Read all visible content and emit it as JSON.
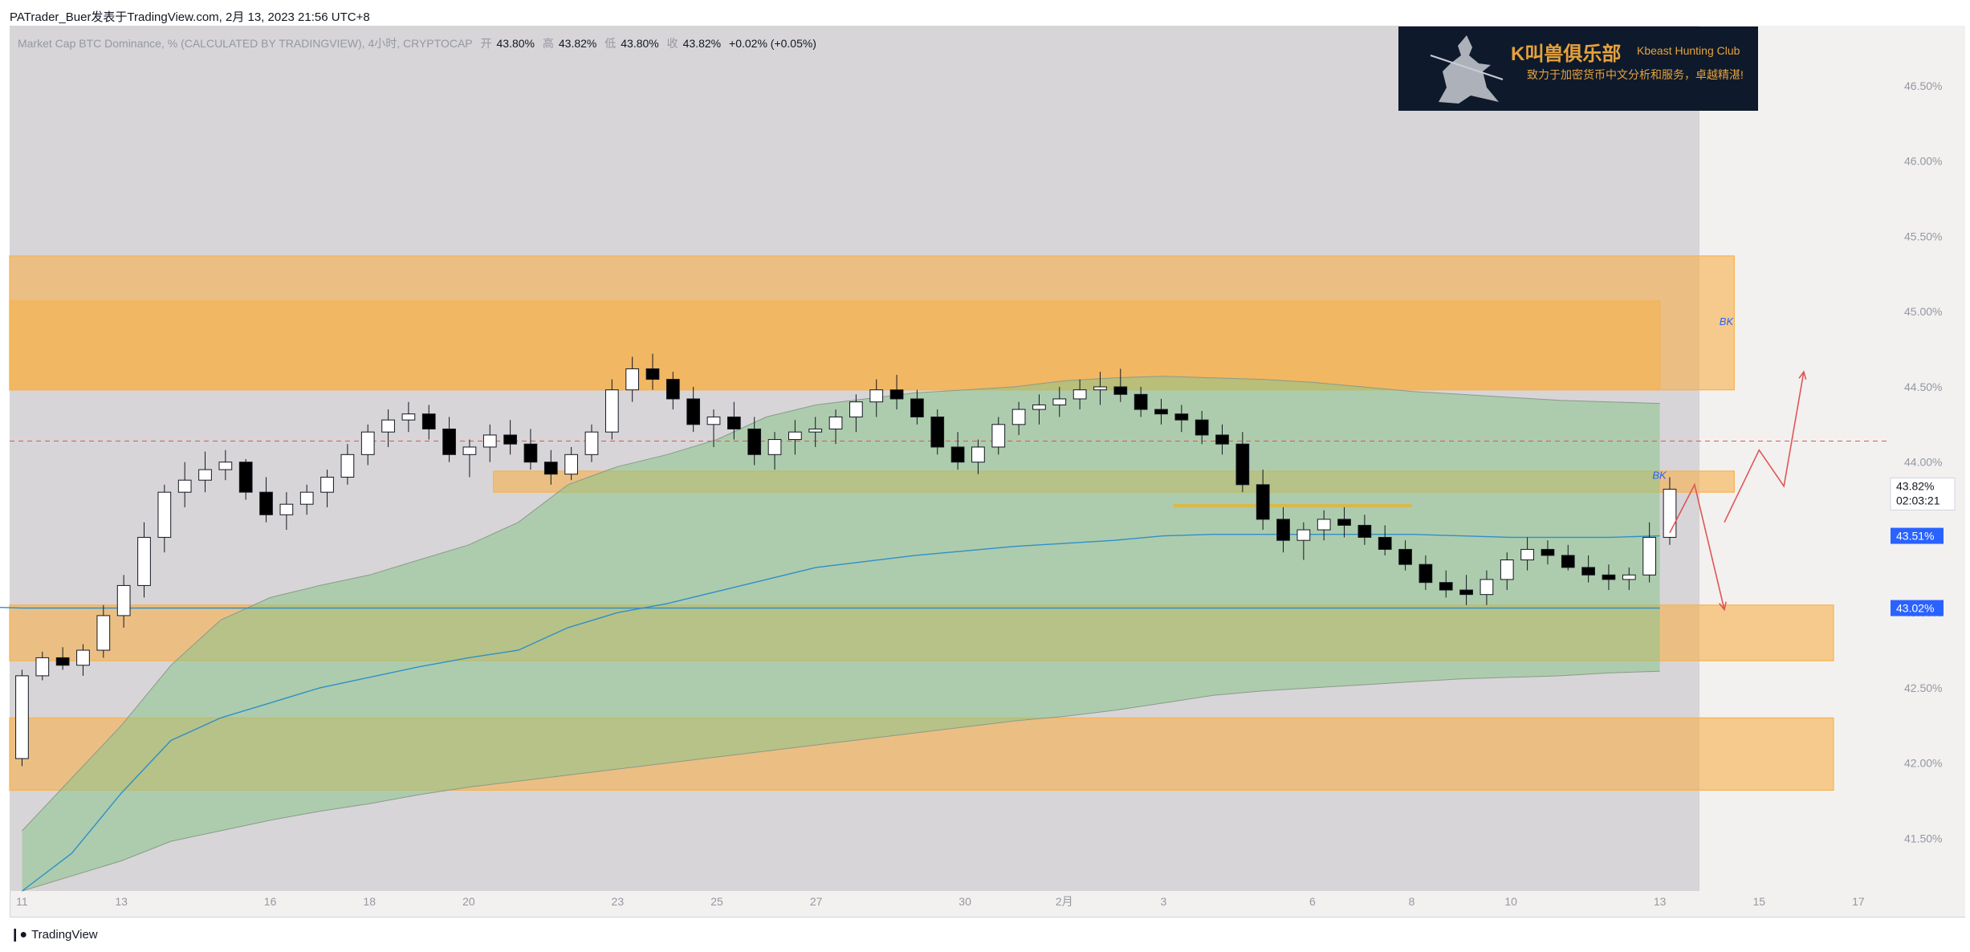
{
  "header": {
    "publisher_line": "PATrader_Buer发表于TradingView.com, 2月 13, 2023 21:56 UTC+8"
  },
  "legend": {
    "symbol": "Market Cap BTC Dominance, % (CALCULATED BY TRADINGVIEW), 4小时, CRYPTOCAP",
    "open_label": "开",
    "open": "43.80%",
    "high_label": "高",
    "high": "43.82%",
    "low_label": "低",
    "low": "43.80%",
    "close_label": "收",
    "close": "43.82%",
    "change": "+0.02% (+0.05%)"
  },
  "banner": {
    "title": "K叫兽俱乐部",
    "title_en": "Kbeast Hunting Club",
    "subtitle": "致力于加密货币中文分析和服务，卓越精湛!"
  },
  "footer": {
    "brand": "TradingView"
  },
  "colors": {
    "zone": "#f7b24f",
    "cloud": "#8bc58a",
    "ma": "#2f8fc9",
    "hline": "#e05555",
    "arrow": "#e05555",
    "badge": "#2962ff",
    "candle_up": "#ffffff",
    "candle_down": "#000000"
  },
  "chart_data": {
    "type": "candlestick",
    "y_axis_side": "right",
    "ylim": [
      41.15,
      46.9
    ],
    "y_ticks": [
      "46.50%",
      "46.00%",
      "45.50%",
      "45.00%",
      "44.50%",
      "44.00%",
      "43.50%",
      "43.00%",
      "42.50%",
      "42.00%",
      "41.50%"
    ],
    "y_tick_values": [
      46.5,
      46.0,
      45.5,
      45.0,
      44.5,
      44.0,
      43.5,
      43.0,
      42.5,
      42.0,
      41.5
    ],
    "x_labels": [
      "11",
      "13",
      "16",
      "18",
      "20",
      "23",
      "25",
      "27",
      "30",
      "2月",
      "3",
      "6",
      "8",
      "10",
      "13",
      "15",
      "17"
    ],
    "x_label_days": [
      0,
      2,
      5,
      7,
      9,
      12,
      14,
      16,
      19,
      21,
      23,
      26,
      28,
      30,
      33,
      35,
      37
    ],
    "price_labels": {
      "last_price": "43.82%",
      "countdown": "02:03:21",
      "ma_value": "43.51%",
      "level": "43.02%"
    },
    "reference_line_value": 44.14,
    "zones": [
      {
        "y_top": 45.37,
        "y_bottom": 44.48,
        "x_start_day": -1,
        "x_end_day": 34.5
      },
      {
        "y_top": 45.07,
        "y_bottom": 44.48,
        "x_start_day": -1,
        "x_end_day": 33.0
      },
      {
        "y_top": 43.94,
        "y_bottom": 43.8,
        "x_start_day": 9.5,
        "x_end_day": 34.5,
        "label": "BK"
      },
      {
        "y_top": 43.05,
        "y_bottom": 42.68,
        "x_start_day": -1,
        "x_end_day": 36.5
      },
      {
        "y_top": 42.3,
        "y_bottom": 41.82,
        "x_start_day": -1,
        "x_end_day": 36.5
      }
    ],
    "zone_labels": [
      {
        "text": "BK",
        "day": 34.2,
        "value": 44.91
      },
      {
        "text": "BK",
        "day": 32.85,
        "value": 43.89
      }
    ],
    "yellow_segment": {
      "value": 43.71,
      "x_start_day": 23.2,
      "x_end_day": 28.0
    },
    "projection_path": [
      {
        "day": 33.2,
        "value": 43.53
      },
      {
        "day": 33.7,
        "value": 43.85
      },
      {
        "day": 34.3,
        "value": 43.02
      }
    ],
    "projection_path_2": [
      {
        "day": 34.3,
        "value": 43.6
      },
      {
        "day": 35.0,
        "value": 44.08
      },
      {
        "day": 35.5,
        "value": 43.84
      },
      {
        "day": 35.9,
        "value": 44.6
      }
    ],
    "ma_series": {
      "points": [
        [
          -1,
          43.04
        ],
        [
          0,
          43.03
        ],
        [
          2,
          43.03
        ],
        [
          4,
          43.03
        ],
        [
          6,
          43.03
        ],
        [
          8,
          43.03
        ],
        [
          10,
          43.03
        ],
        [
          14,
          43.03
        ],
        [
          18,
          43.03
        ],
        [
          22,
          43.03
        ],
        [
          26,
          43.03
        ],
        [
          30,
          43.03
        ],
        [
          33,
          43.03
        ]
      ]
    },
    "ma_series_2": {
      "points": [
        [
          0,
          41.15
        ],
        [
          1,
          41.4
        ],
        [
          2,
          41.8
        ],
        [
          3,
          42.15
        ],
        [
          4,
          42.3
        ],
        [
          5,
          42.4
        ],
        [
          6,
          42.5
        ],
        [
          7,
          42.57
        ],
        [
          8,
          42.64
        ],
        [
          9,
          42.7
        ],
        [
          10,
          42.75
        ],
        [
          11,
          42.9
        ],
        [
          12,
          43.0
        ],
        [
          13,
          43.06
        ],
        [
          14,
          43.14
        ],
        [
          15,
          43.22
        ],
        [
          16,
          43.3
        ],
        [
          17,
          43.34
        ],
        [
          18,
          43.38
        ],
        [
          19,
          43.41
        ],
        [
          20,
          43.44
        ],
        [
          21,
          43.46
        ],
        [
          22,
          43.48
        ],
        [
          23,
          43.51
        ],
        [
          24,
          43.52
        ],
        [
          25,
          43.52
        ],
        [
          26,
          43.52
        ],
        [
          27,
          43.52
        ],
        [
          28,
          43.52
        ],
        [
          29,
          43.51
        ],
        [
          30,
          43.5
        ],
        [
          31,
          43.5
        ],
        [
          32,
          43.5
        ],
        [
          33,
          43.51
        ]
      ]
    },
    "cloud": {
      "upper": [
        [
          0,
          41.55
        ],
        [
          1,
          41.9
        ],
        [
          2,
          42.25
        ],
        [
          3,
          42.65
        ],
        [
          4,
          42.95
        ],
        [
          5,
          43.1
        ],
        [
          6,
          43.18
        ],
        [
          7,
          43.25
        ],
        [
          8,
          43.35
        ],
        [
          9,
          43.45
        ],
        [
          10,
          43.6
        ],
        [
          11,
          43.85
        ],
        [
          12,
          43.97
        ],
        [
          13,
          44.05
        ],
        [
          14,
          44.15
        ],
        [
          15,
          44.3
        ],
        [
          16,
          44.38
        ],
        [
          17,
          44.42
        ],
        [
          18,
          44.46
        ],
        [
          19,
          44.48
        ],
        [
          20,
          44.5
        ],
        [
          21,
          44.54
        ],
        [
          22,
          44.56
        ],
        [
          23,
          44.57
        ],
        [
          24,
          44.56
        ],
        [
          25,
          44.55
        ],
        [
          26,
          44.53
        ],
        [
          27,
          44.5
        ],
        [
          28,
          44.47
        ],
        [
          29,
          44.45
        ],
        [
          30,
          44.43
        ],
        [
          31,
          44.41
        ],
        [
          32,
          44.4
        ],
        [
          33,
          44.39
        ]
      ],
      "lower": [
        [
          0,
          41.15
        ],
        [
          1,
          41.25
        ],
        [
          2,
          41.35
        ],
        [
          3,
          41.48
        ],
        [
          4,
          41.55
        ],
        [
          5,
          41.62
        ],
        [
          6,
          41.68
        ],
        [
          7,
          41.73
        ],
        [
          8,
          41.79
        ],
        [
          9,
          41.84
        ],
        [
          10,
          41.88
        ],
        [
          11,
          41.92
        ],
        [
          12,
          41.96
        ],
        [
          13,
          42.0
        ],
        [
          14,
          42.04
        ],
        [
          15,
          42.08
        ],
        [
          16,
          42.12
        ],
        [
          17,
          42.16
        ],
        [
          18,
          42.2
        ],
        [
          19,
          42.24
        ],
        [
          20,
          42.28
        ],
        [
          21,
          42.31
        ],
        [
          22,
          42.35
        ],
        [
          23,
          42.4
        ],
        [
          24,
          42.45
        ],
        [
          25,
          42.48
        ],
        [
          26,
          42.5
        ],
        [
          27,
          42.52
        ],
        [
          28,
          42.54
        ],
        [
          29,
          42.56
        ],
        [
          30,
          42.57
        ],
        [
          31,
          42.58
        ],
        [
          32,
          42.6
        ],
        [
          33,
          42.61
        ]
      ]
    },
    "candles": [
      [
        42.03,
        42.62,
        41.98,
        42.58
      ],
      [
        42.58,
        42.74,
        42.55,
        42.7
      ],
      [
        42.7,
        42.77,
        42.62,
        42.65
      ],
      [
        42.65,
        42.79,
        42.58,
        42.75
      ],
      [
        42.75,
        43.05,
        42.7,
        42.98
      ],
      [
        42.98,
        43.25,
        42.9,
        43.18
      ],
      [
        43.18,
        43.6,
        43.1,
        43.5
      ],
      [
        43.5,
        43.85,
        43.4,
        43.8
      ],
      [
        43.8,
        44.0,
        43.7,
        43.88
      ],
      [
        43.88,
        44.07,
        43.8,
        43.95
      ],
      [
        43.95,
        44.08,
        43.88,
        44.0
      ],
      [
        44.0,
        44.02,
        43.75,
        43.8
      ],
      [
        43.8,
        43.9,
        43.6,
        43.65
      ],
      [
        43.65,
        43.8,
        43.55,
        43.72
      ],
      [
        43.72,
        43.85,
        43.65,
        43.8
      ],
      [
        43.8,
        43.95,
        43.7,
        43.9
      ],
      [
        43.9,
        44.12,
        43.85,
        44.05
      ],
      [
        44.05,
        44.25,
        43.98,
        44.2
      ],
      [
        44.2,
        44.35,
        44.1,
        44.28
      ],
      [
        44.28,
        44.4,
        44.2,
        44.32
      ],
      [
        44.32,
        44.38,
        44.15,
        44.22
      ],
      [
        44.22,
        44.3,
        44.0,
        44.05
      ],
      [
        44.05,
        44.15,
        43.9,
        44.1
      ],
      [
        44.1,
        44.25,
        44.0,
        44.18
      ],
      [
        44.18,
        44.28,
        44.05,
        44.12
      ],
      [
        44.12,
        44.22,
        43.95,
        44.0
      ],
      [
        44.0,
        44.08,
        43.85,
        43.92
      ],
      [
        43.92,
        44.1,
        43.88,
        44.05
      ],
      [
        44.05,
        44.25,
        44.0,
        44.2
      ],
      [
        44.2,
        44.55,
        44.15,
        44.48
      ],
      [
        44.48,
        44.7,
        44.4,
        44.62
      ],
      [
        44.62,
        44.72,
        44.48,
        44.55
      ],
      [
        44.55,
        44.6,
        44.35,
        44.42
      ],
      [
        44.42,
        44.5,
        44.2,
        44.25
      ],
      [
        44.25,
        44.35,
        44.1,
        44.3
      ],
      [
        44.3,
        44.4,
        44.15,
        44.22
      ],
      [
        44.22,
        44.3,
        43.98,
        44.05
      ],
      [
        44.05,
        44.2,
        43.95,
        44.15
      ],
      [
        44.15,
        44.28,
        44.05,
        44.2
      ],
      [
        44.2,
        44.3,
        44.1,
        44.22
      ],
      [
        44.22,
        44.35,
        44.12,
        44.3
      ],
      [
        44.3,
        44.45,
        44.2,
        44.4
      ],
      [
        44.4,
        44.55,
        44.3,
        44.48
      ],
      [
        44.48,
        44.58,
        44.35,
        44.42
      ],
      [
        44.42,
        44.48,
        44.25,
        44.3
      ],
      [
        44.3,
        44.35,
        44.05,
        44.1
      ],
      [
        44.1,
        44.2,
        43.95,
        44.0
      ],
      [
        44.0,
        44.15,
        43.92,
        44.1
      ],
      [
        44.1,
        44.3,
        44.05,
        44.25
      ],
      [
        44.25,
        44.4,
        44.18,
        44.35
      ],
      [
        44.35,
        44.45,
        44.25,
        44.38
      ],
      [
        44.38,
        44.5,
        44.3,
        44.42
      ],
      [
        44.42,
        44.55,
        44.35,
        44.48
      ],
      [
        44.48,
        44.6,
        44.38,
        44.5
      ],
      [
        44.5,
        44.62,
        44.4,
        44.45
      ],
      [
        44.45,
        44.5,
        44.3,
        44.35
      ],
      [
        44.35,
        44.42,
        44.25,
        44.32
      ],
      [
        44.32,
        44.38,
        44.2,
        44.28
      ],
      [
        44.28,
        44.34,
        44.12,
        44.18
      ],
      [
        44.18,
        44.25,
        44.05,
        44.12
      ],
      [
        44.12,
        44.2,
        43.8,
        43.85
      ],
      [
        43.85,
        43.95,
        43.55,
        43.62
      ],
      [
        43.62,
        43.7,
        43.4,
        43.48
      ],
      [
        43.48,
        43.6,
        43.35,
        43.55
      ],
      [
        43.55,
        43.68,
        43.48,
        43.62
      ],
      [
        43.62,
        43.7,
        43.5,
        43.58
      ],
      [
        43.58,
        43.65,
        43.45,
        43.5
      ],
      [
        43.5,
        43.58,
        43.38,
        43.42
      ],
      [
        43.42,
        43.48,
        43.28,
        43.32
      ],
      [
        43.32,
        43.38,
        43.15,
        43.2
      ],
      [
        43.2,
        43.28,
        43.1,
        43.15
      ],
      [
        43.15,
        43.25,
        43.05,
        43.12
      ],
      [
        43.12,
        43.28,
        43.05,
        43.22
      ],
      [
        43.22,
        43.4,
        43.15,
        43.35
      ],
      [
        43.35,
        43.5,
        43.28,
        43.42
      ],
      [
        43.42,
        43.48,
        43.32,
        43.38
      ],
      [
        43.38,
        43.45,
        43.28,
        43.3
      ],
      [
        43.3,
        43.38,
        43.2,
        43.25
      ],
      [
        43.25,
        43.32,
        43.15,
        43.22
      ],
      [
        43.22,
        43.3,
        43.15,
        43.25
      ],
      [
        43.25,
        43.6,
        43.2,
        43.5
      ],
      [
        43.5,
        43.9,
        43.45,
        43.82
      ]
    ],
    "candles_start_day": 0,
    "candles_end_day": 33.2
  }
}
